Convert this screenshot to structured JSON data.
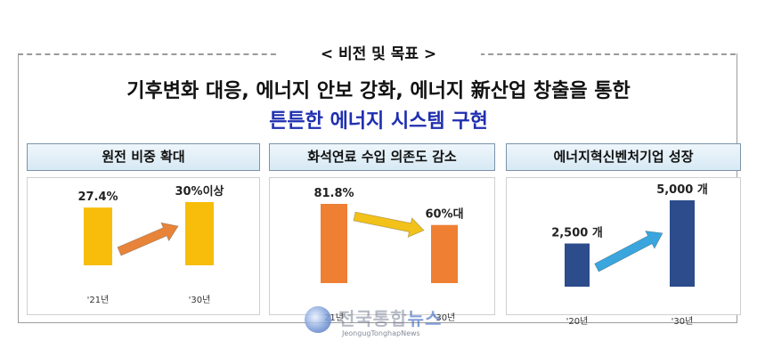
{
  "heading": "< 비전 및 목표 >",
  "title_line1": "기후변화 대응, 에너지 안보 강화, 에너지 新산업 창출을 통한",
  "title_line2": "튼튼한 에너지 시스템 구현",
  "chart_data": [
    {
      "type": "bar",
      "title": "원전 비중 확대",
      "categories": [
        "'21년",
        "'30년"
      ],
      "values": [
        27.4,
        30
      ],
      "data_labels": [
        "27.4%",
        "30%이상"
      ],
      "bar_color": "#f7bd0a",
      "arrow_color": "#e8843a",
      "arrow_direction": "up"
    },
    {
      "type": "bar",
      "title": "화석연료 수입 의존도 감소",
      "categories": [
        "21년",
        "'30년"
      ],
      "values": [
        81.8,
        60
      ],
      "data_labels": [
        "81.8%",
        "60%대"
      ],
      "bar_color": "#ee7f33",
      "arrow_color": "#f2c11a",
      "arrow_direction": "down"
    },
    {
      "type": "bar",
      "title": "에너지혁신벤처기업 성장",
      "categories": [
        "'20년",
        "'30년"
      ],
      "values": [
        2500,
        5000
      ],
      "data_labels": [
        "2,500 개",
        "5,000 개"
      ],
      "bar_color": "#2c4c8c",
      "arrow_color": "#3aa6dd",
      "arrow_direction": "up"
    }
  ],
  "watermark": {
    "brand": "전국통합",
    "brand_accent": "뉴스",
    "sub": "JeongugTonghapNews"
  }
}
